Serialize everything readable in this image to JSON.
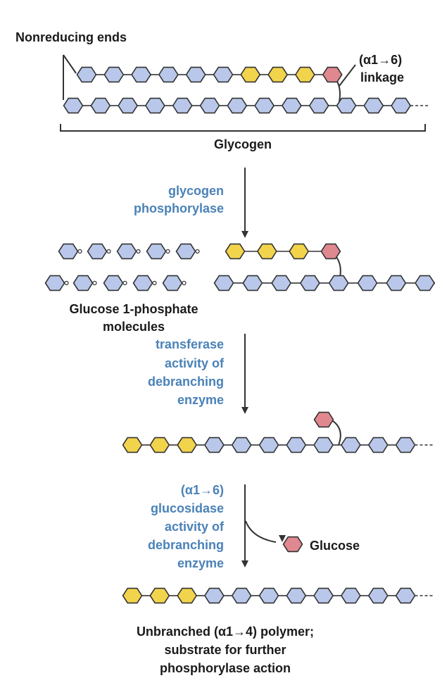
{
  "labels": {
    "nonreducing_ends": "Nonreducing ends",
    "linkage_line1": "(α1→6)",
    "linkage_line2": "linkage",
    "glycogen": "Glycogen",
    "enzyme1_line1": "glycogen",
    "enzyme1_line2": "phosphorylase",
    "product1_line1": "Glucose 1-phosphate",
    "product1_line2": "molecules",
    "enzyme2_line1": "transferase",
    "enzyme2_line2": "activity of",
    "enzyme2_line3": "debranching",
    "enzyme2_line4": "enzyme",
    "enzyme3_line1": "(α1→6)",
    "enzyme3_line2": "glucosidase",
    "enzyme3_line3": "activity of",
    "enzyme3_line4": "debranching",
    "enzyme3_line5": "enzyme",
    "glucose": "Glucose",
    "final_line1": "Unbranched (α1→4) polymer;",
    "final_line2": "substrate for further",
    "final_line3": "phosphorylase action"
  },
  "colors": {
    "glucose_residue": "#b9c8ea",
    "removable_residue": "#f2d44c",
    "branch_point_residue": "#e08890",
    "enzyme_text": "#4a82b8",
    "outline": "#333333"
  }
}
